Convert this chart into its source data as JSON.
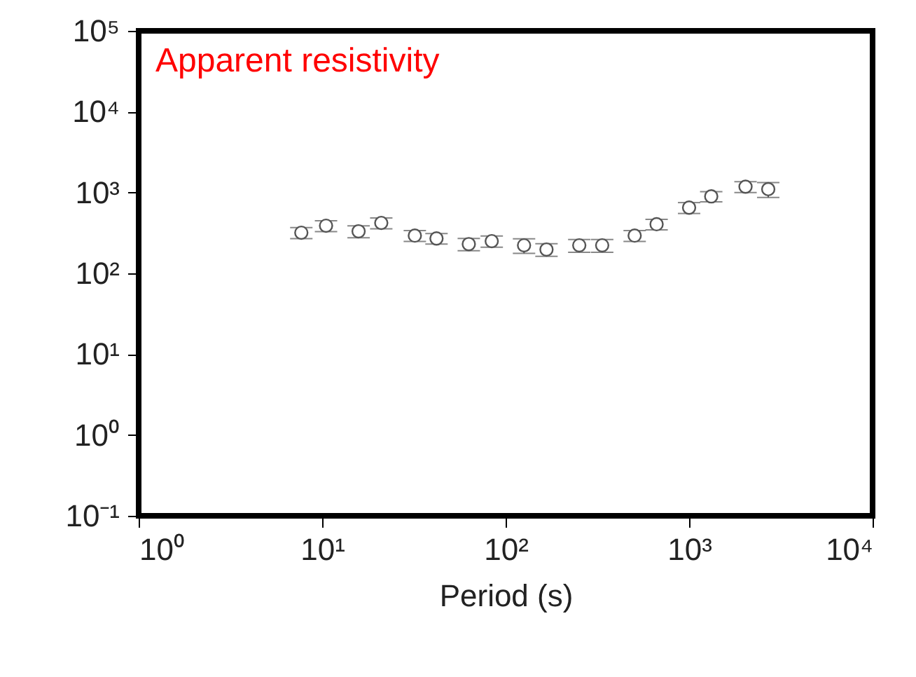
{
  "chart_data": {
    "type": "scatter",
    "title": "Apparent resistivity",
    "xlabel": "Period (s)",
    "log": "xy",
    "marker": "circle",
    "xlim": [
      1,
      10000
    ],
    "ylim": [
      0.1,
      100000
    ],
    "xticks": [
      {
        "value": 1,
        "label": "10⁰"
      },
      {
        "value": 10,
        "label": "10¹"
      },
      {
        "value": 100,
        "label": "10²"
      },
      {
        "value": 1000,
        "label": "10³"
      },
      {
        "value": 10000,
        "label": "10⁴"
      }
    ],
    "yticks": [
      {
        "value": 0.1,
        "label": "10⁻¹"
      },
      {
        "value": 1,
        "label": "10⁰"
      },
      {
        "value": 10,
        "label": "10¹"
      },
      {
        "value": 100,
        "label": "10²"
      },
      {
        "value": 1000,
        "label": "10³"
      },
      {
        "value": 10000,
        "label": "10⁴"
      },
      {
        "value": 100000,
        "label": "10⁵"
      }
    ],
    "series": [
      {
        "color": "#555555",
        "x": [
          7.7,
          10.5,
          15.8,
          21,
          32,
          42,
          63,
          84,
          126,
          167,
          252,
          336,
          505,
          665,
          1000,
          1320,
          2030,
          2700
        ],
        "values": [
          318,
          388,
          331,
          420,
          293,
          270,
          230,
          250,
          222,
          197,
          222,
          222,
          293,
          405,
          650,
          895,
          1180,
          1100
        ],
        "errors": [
          50,
          60,
          55,
          65,
          45,
          40,
          40,
          40,
          45,
          35,
          40,
          40,
          45,
          60,
          100,
          130,
          180,
          230
        ]
      }
    ]
  }
}
